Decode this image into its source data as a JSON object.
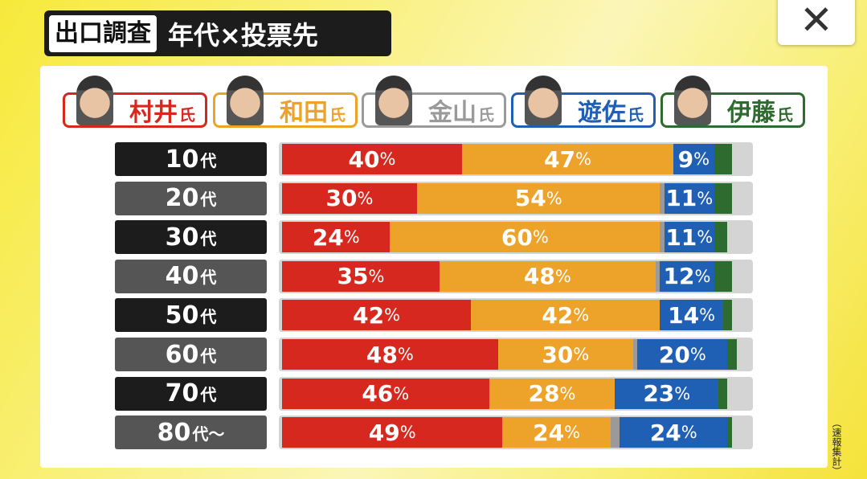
{
  "header": {
    "tag": "出口調査",
    "title": "年代×投票先",
    "close_icon": "✕"
  },
  "note": "（速報集計）",
  "chart_data": {
    "type": "bar",
    "orientation": "horizontal",
    "stacked": true,
    "title": "年代×投票先",
    "unit": "%",
    "xlim": [
      0,
      100
    ],
    "series": [
      {
        "name": "村井",
        "suffix": "氏",
        "color": "#d7281f",
        "values": [
          40,
          30,
          24,
          35,
          42,
          48,
          46,
          49
        ],
        "labeled": true
      },
      {
        "name": "和田",
        "suffix": "氏",
        "color": "#eda22a",
        "values": [
          47,
          54,
          60,
          48,
          42,
          30,
          28,
          24
        ],
        "labeled": true
      },
      {
        "name": "金山",
        "suffix": "氏",
        "color": "#9a9a9a",
        "values": [
          0,
          1,
          1,
          1,
          0,
          1,
          0,
          2
        ],
        "labeled": false
      },
      {
        "name": "遊佐",
        "suffix": "氏",
        "color": "#1f5fb4",
        "values": [
          9,
          11,
          11,
          12,
          14,
          20,
          23,
          24
        ],
        "labeled": true
      },
      {
        "name": "伊藤",
        "suffix": "氏",
        "color": "#2e6b2e",
        "values": [
          4,
          4,
          3,
          4,
          2,
          2,
          2,
          1
        ],
        "labeled": false
      }
    ],
    "categories": [
      {
        "num": "10",
        "suffix": "代"
      },
      {
        "num": "20",
        "suffix": "代"
      },
      {
        "num": "30",
        "suffix": "代"
      },
      {
        "num": "40",
        "suffix": "代"
      },
      {
        "num": "50",
        "suffix": "代"
      },
      {
        "num": "60",
        "suffix": "代"
      },
      {
        "num": "70",
        "suffix": "代"
      },
      {
        "num": "80",
        "suffix": "代～"
      }
    ]
  }
}
